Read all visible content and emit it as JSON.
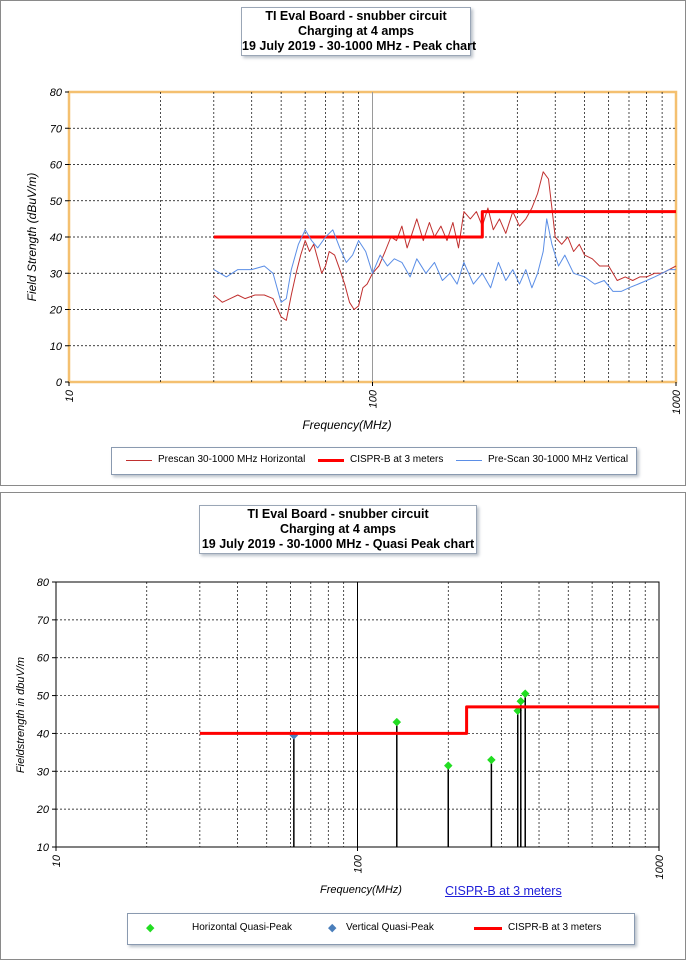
{
  "chart_data": [
    {
      "type": "line",
      "title": [
        "TI Eval Board - snubber circuit",
        "Charging at 4 amps",
        "19 July 2019 - 30-1000 MHz - Peak chart"
      ],
      "xlabel": "Frequency(MHz)",
      "ylabel": "Field Strength (dBuV/m)",
      "x_scale": "log",
      "xlim": [
        10,
        1000
      ],
      "ylim": [
        0,
        80
      ],
      "x_ticks": [
        "10",
        "100",
        "1000"
      ],
      "y_ticks": [
        "0",
        "10",
        "20",
        "30",
        "40",
        "50",
        "60",
        "70",
        "80"
      ],
      "grid": true,
      "legend_position": "bottom",
      "series": [
        {
          "name": "Prescan 30-1000 MHz Horizontal",
          "color": "#c0302f",
          "x": [
            30,
            32,
            34,
            36,
            38,
            41,
            44,
            47,
            50,
            52,
            54,
            56,
            58,
            60,
            62,
            64,
            66,
            68,
            70,
            72,
            75,
            78,
            81,
            84,
            87,
            90,
            93,
            96,
            100,
            105,
            110,
            115,
            120,
            125,
            130,
            135,
            140,
            147,
            154,
            160,
            168,
            176,
            184,
            192,
            200,
            210,
            220,
            230,
            240,
            250,
            262,
            275,
            290,
            305,
            320,
            335,
            350,
            365,
            380,
            390,
            400,
            420,
            440,
            460,
            480,
            500,
            530,
            560,
            600,
            640,
            680,
            720,
            760,
            800,
            850,
            900,
            950,
            1000
          ],
          "y": [
            24,
            22,
            23,
            24,
            23,
            24,
            24,
            23,
            18,
            17,
            24,
            30,
            35,
            39,
            36,
            38,
            34,
            30,
            32,
            36,
            35,
            31,
            27,
            22,
            20,
            21,
            26,
            27,
            30,
            32,
            36,
            40,
            39,
            43,
            37,
            41,
            45,
            39,
            44,
            40,
            43,
            39,
            44,
            37,
            47,
            45,
            47,
            43,
            48,
            42,
            45,
            41,
            47,
            43,
            45,
            48,
            52,
            58,
            56,
            48,
            40,
            38,
            40,
            36,
            38,
            35,
            34,
            32,
            32,
            28,
            29,
            28,
            29,
            29,
            30,
            30,
            31,
            32
          ]
        },
        {
          "name": "CISPR-B at  3 meters",
          "color": "#ff0000",
          "x": [
            30,
            230,
            230,
            1000
          ],
          "y": [
            40,
            40,
            47,
            47
          ]
        },
        {
          "name": "Pre-Scan 30-1000 MHz Vertical",
          "color": "#5b8ee6",
          "x": [
            30,
            33,
            36,
            40,
            44,
            47,
            50,
            52,
            54,
            57,
            60,
            63,
            66,
            70,
            74,
            78,
            82,
            86,
            90,
            95,
            100,
            106,
            112,
            118,
            125,
            133,
            140,
            150,
            160,
            170,
            180,
            190,
            200,
            215,
            230,
            245,
            260,
            275,
            290,
            305,
            320,
            335,
            350,
            365,
            375,
            390,
            410,
            430,
            460,
            500,
            540,
            580,
            620,
            660,
            700,
            750,
            800,
            850,
            900,
            950,
            1000
          ],
          "y": [
            31,
            29,
            31,
            31,
            32,
            30,
            22,
            23,
            31,
            38,
            42,
            39,
            37,
            40,
            42,
            37,
            33,
            35,
            39,
            36,
            30,
            35,
            32,
            34,
            33,
            29,
            34,
            30,
            33,
            28,
            30,
            27,
            33,
            27,
            30,
            26,
            33,
            28,
            31,
            27,
            31,
            26,
            30,
            36,
            45,
            38,
            32,
            35,
            30,
            29,
            27,
            28,
            25,
            25,
            26,
            27,
            28,
            29,
            30,
            31,
            31
          ]
        }
      ]
    },
    {
      "type": "scatter",
      "title": [
        "TI Eval Board  - snubber circuit",
        "Charging at 4 amps",
        "19 July 2019 - 30-1000 MHz - Quasi Peak chart"
      ],
      "xlabel": "Frequency(MHz)",
      "ylabel": "Fieldstrength in dbuV/m",
      "x_scale": "log",
      "xlim": [
        10,
        1000
      ],
      "ylim": [
        10,
        80
      ],
      "x_ticks": [
        "10",
        "100",
        "1000"
      ],
      "y_ticks": [
        "10",
        "20",
        "30",
        "40",
        "50",
        "60",
        "70",
        "80"
      ],
      "grid": true,
      "legend_position": "bottom",
      "note": "CISPR-B at  3 meters",
      "series": [
        {
          "name": "Horizontal Quasi-Peak",
          "color": "#22dd22",
          "marker": "diamond",
          "x": [
            135,
            200,
            278,
            340,
            348,
            360
          ],
          "y": [
            43,
            31.5,
            33,
            46,
            48.5,
            50.5
          ]
        },
        {
          "name": "Vertical Quasi-Peak",
          "color": "#4a7ebb",
          "marker": "diamond",
          "x": [
            61.5
          ],
          "y": [
            39.5
          ]
        },
        {
          "name": "CISPR-B at  3 meters",
          "color": "#ff0000",
          "x": [
            30,
            230,
            230,
            1000
          ],
          "y": [
            40,
            40,
            47,
            47
          ]
        }
      ]
    }
  ]
}
